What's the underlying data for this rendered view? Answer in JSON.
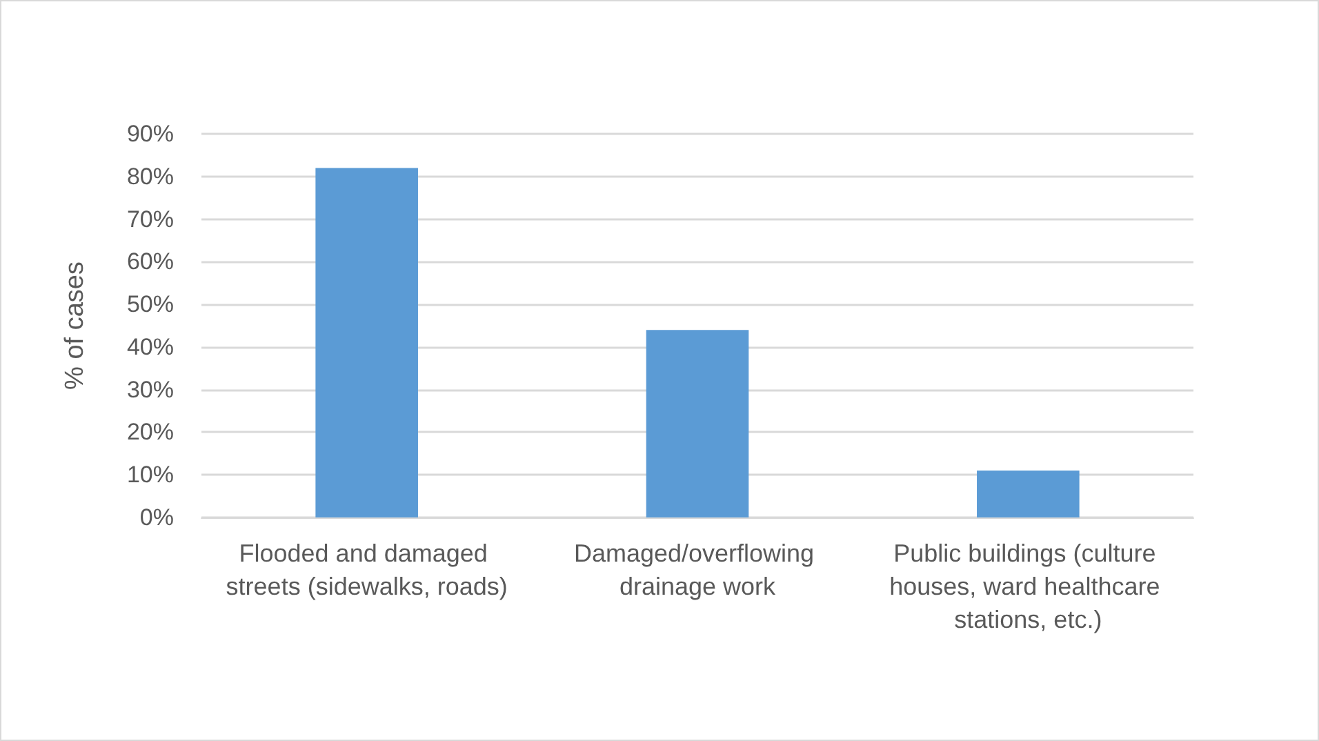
{
  "chart_data": {
    "type": "bar",
    "ylabel": "% of cases",
    "categories": [
      "Flooded and damaged streets (sidewalks, roads)",
      "Damaged/overflowing drainage work",
      "Public buildings (culture houses, ward healthcare stations, etc.)"
    ],
    "values": [
      82,
      44,
      11
    ],
    "color": "#5b9bd5",
    "ylim": [
      0,
      90
    ],
    "yticks": [
      {
        "value": 0,
        "label": "0%"
      },
      {
        "value": 10,
        "label": "10%"
      },
      {
        "value": 20,
        "label": "20%"
      },
      {
        "value": 30,
        "label": "30%"
      },
      {
        "value": 40,
        "label": "40%"
      },
      {
        "value": 50,
        "label": "50%"
      },
      {
        "value": 60,
        "label": "60%"
      },
      {
        "value": 70,
        "label": "70%"
      },
      {
        "value": 80,
        "label": "80%"
      },
      {
        "value": 90,
        "label": "90%"
      }
    ],
    "grid": true
  }
}
